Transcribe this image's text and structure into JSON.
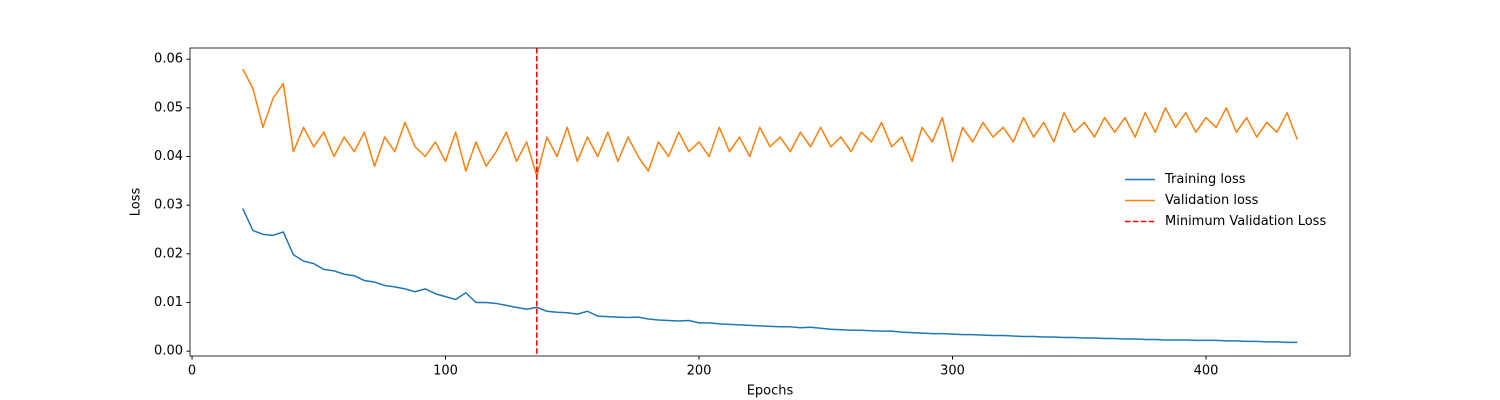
{
  "chart_data": {
    "type": "line",
    "xlabel": "Epochs",
    "ylabel": "Loss",
    "x": [
      20,
      24,
      28,
      32,
      36,
      40,
      44,
      48,
      52,
      56,
      60,
      64,
      68,
      72,
      76,
      80,
      84,
      88,
      92,
      96,
      100,
      104,
      108,
      112,
      116,
      120,
      124,
      128,
      132,
      136,
      140,
      144,
      148,
      152,
      156,
      160,
      164,
      168,
      172,
      176,
      180,
      184,
      188,
      192,
      196,
      200,
      204,
      208,
      212,
      216,
      220,
      224,
      228,
      232,
      236,
      240,
      244,
      248,
      252,
      256,
      260,
      264,
      268,
      272,
      276,
      280,
      284,
      288,
      292,
      296,
      300,
      304,
      308,
      312,
      316,
      320,
      324,
      328,
      332,
      336,
      340,
      344,
      348,
      352,
      356,
      360,
      364,
      368,
      372,
      376,
      380,
      384,
      388,
      392,
      396,
      400,
      404,
      408,
      412,
      416,
      420,
      424,
      428,
      432,
      436
    ],
    "series": [
      {
        "name": "Training loss",
        "color": "#1f77b4",
        "values": [
          0.0293,
          0.0248,
          0.024,
          0.0238,
          0.0245,
          0.0198,
          0.0185,
          0.018,
          0.0168,
          0.0165,
          0.0158,
          0.0155,
          0.0145,
          0.0142,
          0.0135,
          0.0132,
          0.0128,
          0.0122,
          0.0128,
          0.0118,
          0.0112,
          0.0106,
          0.012,
          0.01,
          0.01,
          0.0098,
          0.0094,
          0.009,
          0.0086,
          0.009,
          0.0082,
          0.008,
          0.0079,
          0.0076,
          0.0082,
          0.0072,
          0.0071,
          0.007,
          0.0069,
          0.007,
          0.0066,
          0.0064,
          0.0063,
          0.0062,
          0.0063,
          0.0058,
          0.0058,
          0.0056,
          0.0055,
          0.0054,
          0.0053,
          0.0052,
          0.0051,
          0.005,
          0.005,
          0.0048,
          0.0049,
          0.0047,
          0.0045,
          0.0044,
          0.0043,
          0.0043,
          0.0042,
          0.0041,
          0.0041,
          0.0039,
          0.0038,
          0.0037,
          0.0036,
          0.0036,
          0.0035,
          0.0034,
          0.0034,
          0.0033,
          0.0032,
          0.0032,
          0.0031,
          0.003,
          0.003,
          0.0029,
          0.0029,
          0.0028,
          0.0028,
          0.0027,
          0.0027,
          0.0026,
          0.0026,
          0.0025,
          0.0025,
          0.0024,
          0.0024,
          0.0023,
          0.0023,
          0.0023,
          0.0022,
          0.0022,
          0.0022,
          0.0021,
          0.0021,
          0.002,
          0.002,
          0.0019,
          0.0019,
          0.0018,
          0.0018
        ]
      },
      {
        "name": "Validation loss",
        "color": "#ff7f0e",
        "values": [
          0.058,
          0.054,
          0.046,
          0.052,
          0.055,
          0.041,
          0.046,
          0.042,
          0.045,
          0.04,
          0.044,
          0.041,
          0.045,
          0.038,
          0.044,
          0.041,
          0.047,
          0.042,
          0.04,
          0.043,
          0.039,
          0.045,
          0.037,
          0.043,
          0.038,
          0.041,
          0.045,
          0.039,
          0.043,
          0.036,
          0.044,
          0.04,
          0.046,
          0.039,
          0.044,
          0.04,
          0.045,
          0.039,
          0.044,
          0.04,
          0.037,
          0.043,
          0.04,
          0.045,
          0.041,
          0.043,
          0.04,
          0.046,
          0.041,
          0.044,
          0.04,
          0.046,
          0.042,
          0.044,
          0.041,
          0.045,
          0.042,
          0.046,
          0.042,
          0.044,
          0.041,
          0.045,
          0.043,
          0.047,
          0.042,
          0.044,
          0.039,
          0.046,
          0.043,
          0.048,
          0.039,
          0.046,
          0.043,
          0.047,
          0.044,
          0.046,
          0.043,
          0.048,
          0.044,
          0.047,
          0.043,
          0.049,
          0.045,
          0.047,
          0.044,
          0.048,
          0.045,
          0.048,
          0.044,
          0.049,
          0.045,
          0.05,
          0.046,
          0.049,
          0.045,
          0.048,
          0.046,
          0.05,
          0.045,
          0.048,
          0.044,
          0.047,
          0.045,
          0.049,
          0.0435
        ]
      }
    ],
    "vline": {
      "name": "Minimum Validation Loss",
      "x": 136,
      "color": "red"
    },
    "xlim": [
      -0.8,
      456.8
    ],
    "xticks": [
      0,
      100,
      200,
      300,
      400
    ],
    "ylim": [
      -0.001,
      0.0623
    ],
    "yticks": [
      {
        "value": 0,
        "label": "0.00"
      },
      {
        "value": 0.01,
        "label": "0.01"
      },
      {
        "value": 0.02,
        "label": "0.02"
      },
      {
        "value": 0.03,
        "label": "0.03"
      },
      {
        "value": 0.04,
        "label": "0.04"
      },
      {
        "value": 0.05,
        "label": "0.05"
      },
      {
        "value": 0.06,
        "label": "0.06"
      }
    ],
    "legend": "center right",
    "grid": false
  }
}
